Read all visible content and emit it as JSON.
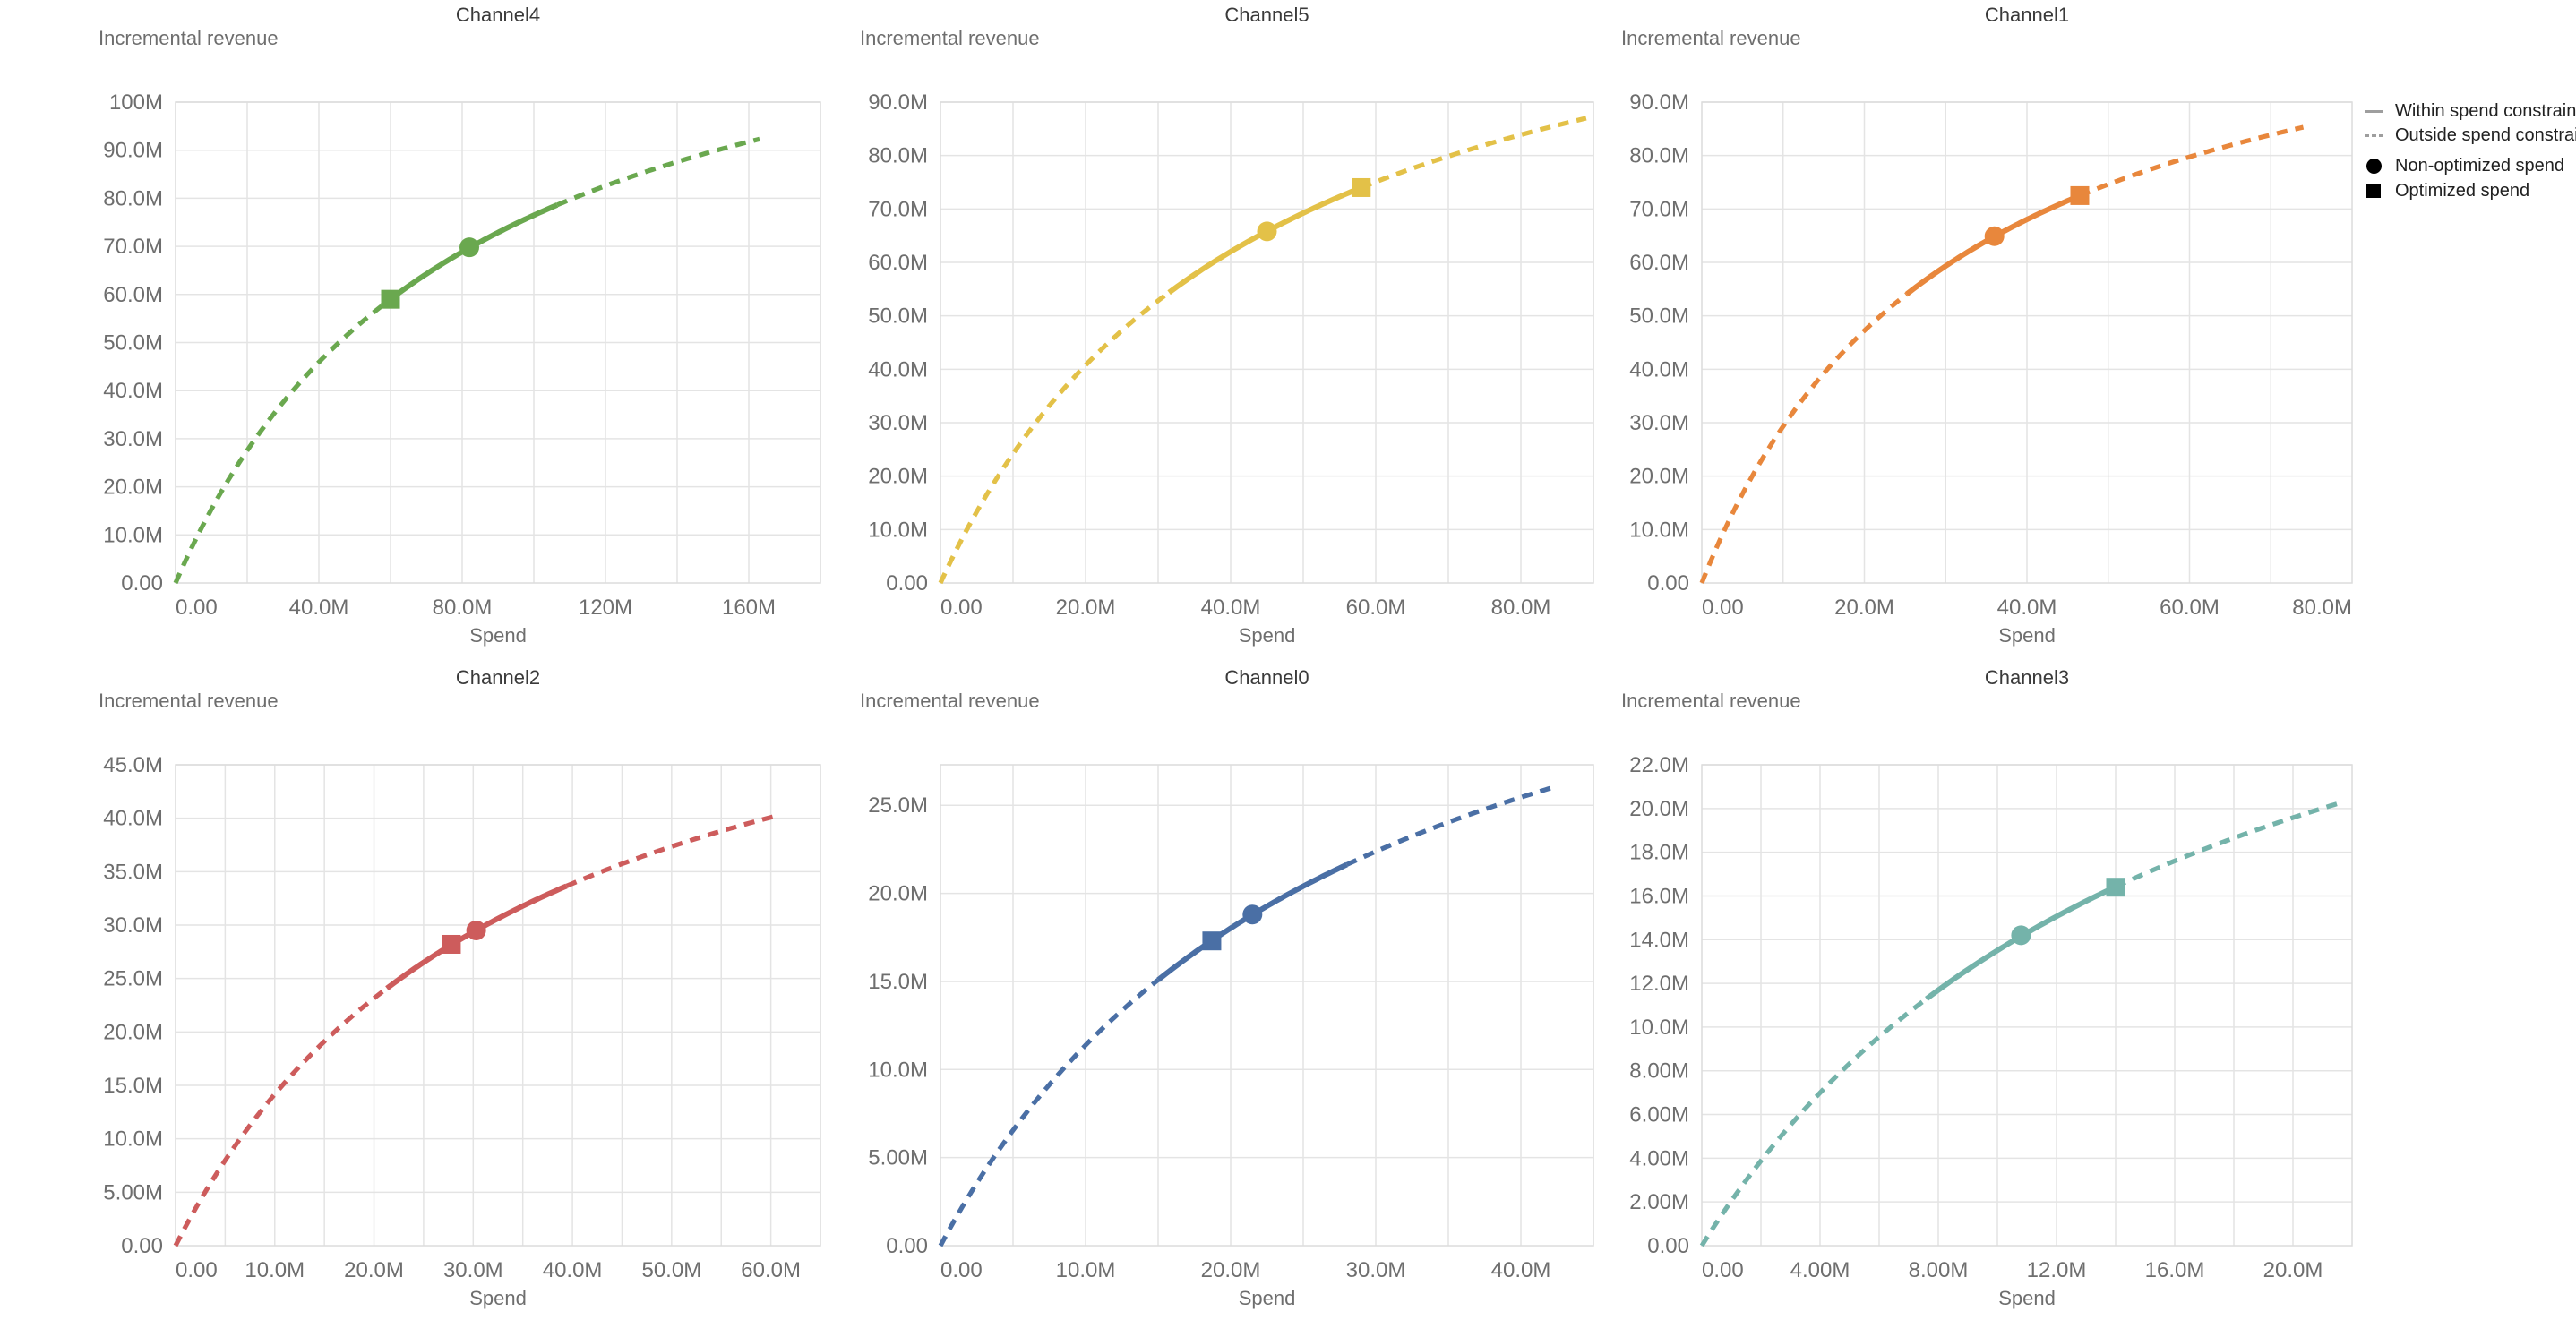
{
  "page": {
    "background": "#ffffff",
    "value_unit": "millions"
  },
  "axis_titles": {
    "x": "Spend",
    "y": "Incremental revenue"
  },
  "legend": {
    "text_color": "#212121",
    "line_swatch_color": "#9e9e9e",
    "marker_swatch_color": "#000000",
    "items": [
      {
        "swatch": "line-solid",
        "label": "Within spend constraint"
      },
      {
        "swatch": "line-dashed",
        "label": "Outside spend constraint"
      },
      {
        "swatch": "circle",
        "label": "Non-optimized spend"
      },
      {
        "swatch": "square",
        "label": "Optimized spend"
      }
    ]
  },
  "chart_data": [
    {
      "type": "line",
      "title": "Channel4",
      "color": "#6aa84f",
      "xlabel": "Spend",
      "ylabel": "Incremental revenue",
      "x_domain": [
        0,
        180
      ],
      "x_grid_step": 20,
      "y_domain": [
        0,
        100
      ],
      "x_ticks": [
        {
          "v": 0,
          "label": "0.00"
        },
        {
          "v": 40,
          "label": "40.0M"
        },
        {
          "v": 80,
          "label": "80.0M"
        },
        {
          "v": 120,
          "label": "120M"
        },
        {
          "v": 160,
          "label": "160M"
        }
      ],
      "y_ticks": [
        {
          "v": 0,
          "label": "0.00"
        },
        {
          "v": 10,
          "label": "10.0M"
        },
        {
          "v": 20,
          "label": "20.0M"
        },
        {
          "v": 30,
          "label": "30.0M"
        },
        {
          "v": 40,
          "label": "40.0M"
        },
        {
          "v": 50,
          "label": "50.0M"
        },
        {
          "v": 60,
          "label": "60.0M"
        },
        {
          "v": 70,
          "label": "70.0M"
        },
        {
          "v": 80,
          "label": "80.0M"
        },
        {
          "v": 90,
          "label": "90.0M"
        },
        {
          "v": 100,
          "label": "100M"
        }
      ],
      "last_label_flush": false,
      "curve": {
        "hill_ymax": 137.5,
        "hill_k": 79.8,
        "x_end": 163,
        "solid_range": [
          57.5,
          106.5
        ]
      },
      "points": {
        "non_optimized": {
          "x": 82,
          "y": 69.8
        },
        "optimized": {
          "x": 60,
          "y": 59.0
        }
      },
      "series": {
        "x": [
          0,
          20,
          40,
          60,
          80,
          100,
          120,
          140,
          160,
          163
        ],
        "y": [
          0,
          27.6,
          45.9,
          59.0,
          68.8,
          76.5,
          82.6,
          87.6,
          91.8,
          92.3
        ]
      }
    },
    {
      "type": "line",
      "title": "Channel5",
      "color": "#e3c148",
      "xlabel": "Spend",
      "ylabel": "Incremental revenue",
      "x_domain": [
        0,
        90
      ],
      "x_grid_step": 10,
      "y_domain": [
        0,
        90
      ],
      "x_ticks": [
        {
          "v": 0,
          "label": "0.00"
        },
        {
          "v": 20,
          "label": "20.0M"
        },
        {
          "v": 40,
          "label": "40.0M"
        },
        {
          "v": 60,
          "label": "60.0M"
        },
        {
          "v": 80,
          "label": "80.0M"
        }
      ],
      "y_ticks": [
        {
          "v": 0,
          "label": "0.00"
        },
        {
          "v": 10,
          "label": "10.0M"
        },
        {
          "v": 20,
          "label": "20.0M"
        },
        {
          "v": 30,
          "label": "30.0M"
        },
        {
          "v": 40,
          "label": "40.0M"
        },
        {
          "v": 50,
          "label": "50.0M"
        },
        {
          "v": 60,
          "label": "60.0M"
        },
        {
          "v": 70,
          "label": "70.0M"
        },
        {
          "v": 80,
          "label": "80.0M"
        },
        {
          "v": 90,
          "label": "90.0M"
        }
      ],
      "last_label_flush": false,
      "curve": {
        "hill_ymax": 129.6,
        "hill_k": 43.6,
        "x_end": 89,
        "solid_range": [
          31.5,
          58
        ]
      },
      "points": {
        "non_optimized": {
          "x": 45,
          "y": 65.8
        },
        "optimized": {
          "x": 58,
          "y": 74.0
        }
      },
      "series": {
        "x": [
          0,
          10,
          20,
          30,
          40,
          45,
          50,
          58,
          70,
          80,
          89
        ],
        "y": [
          0,
          24.2,
          40.8,
          52.8,
          62.0,
          65.8,
          69.2,
          74.0,
          79.9,
          83.9,
          87.0
        ]
      }
    },
    {
      "type": "line",
      "title": "Channel1",
      "color": "#e8873c",
      "xlabel": "Spend",
      "ylabel": "Incremental revenue",
      "x_domain": [
        0,
        80
      ],
      "x_grid_step": 10,
      "y_domain": [
        0,
        90
      ],
      "x_ticks": [
        {
          "v": 0,
          "label": "0.00"
        },
        {
          "v": 20,
          "label": "20.0M"
        },
        {
          "v": 40,
          "label": "40.0M"
        },
        {
          "v": 60,
          "label": "60.0M"
        },
        {
          "v": 80,
          "label": "80.0M"
        }
      ],
      "y_ticks": [
        {
          "v": 0,
          "label": "0.00"
        },
        {
          "v": 10,
          "label": "10.0M"
        },
        {
          "v": 20,
          "label": "20.0M"
        },
        {
          "v": 30,
          "label": "30.0M"
        },
        {
          "v": 40,
          "label": "40.0M"
        },
        {
          "v": 50,
          "label": "50.0M"
        },
        {
          "v": 60,
          "label": "60.0M"
        },
        {
          "v": 70,
          "label": "70.0M"
        },
        {
          "v": 80,
          "label": "80.0M"
        },
        {
          "v": 90,
          "label": "90.0M"
        }
      ],
      "last_label_flush": true,
      "curve": {
        "hill_ymax": 121.6,
        "hill_k": 31.5,
        "x_end": 74,
        "solid_range": [
          25.2,
          46.5
        ]
      },
      "points": {
        "non_optimized": {
          "x": 36,
          "y": 64.9
        },
        "optimized": {
          "x": 46.5,
          "y": 72.5
        }
      },
      "series": {
        "x": [
          0,
          10,
          20,
          30,
          36,
          40,
          46.5,
          55,
          65,
          74
        ],
        "y": [
          0,
          29.3,
          47.2,
          59.3,
          64.9,
          68.0,
          72.5,
          77.3,
          81.9,
          85.3
        ]
      }
    },
    {
      "type": "line",
      "title": "Channel2",
      "color": "#cd5c5c",
      "xlabel": "Spend",
      "ylabel": "Incremental revenue",
      "x_domain": [
        0,
        65
      ],
      "x_grid_step": 5,
      "y_domain": [
        0,
        45
      ],
      "x_ticks": [
        {
          "v": 0,
          "label": "0.00"
        },
        {
          "v": 10,
          "label": "10.0M"
        },
        {
          "v": 20,
          "label": "20.0M"
        },
        {
          "v": 30,
          "label": "30.0M"
        },
        {
          "v": 40,
          "label": "40.0M"
        },
        {
          "v": 50,
          "label": "50.0M"
        },
        {
          "v": 60,
          "label": "60.0M"
        }
      ],
      "y_ticks": [
        {
          "v": 0,
          "label": "0.00"
        },
        {
          "v": 5,
          "label": "5.00M"
        },
        {
          "v": 10,
          "label": "10.0M"
        },
        {
          "v": 15,
          "label": "15.0M"
        },
        {
          "v": 20,
          "label": "20.0M"
        },
        {
          "v": 25,
          "label": "25.0M"
        },
        {
          "v": 30,
          "label": "30.0M"
        },
        {
          "v": 35,
          "label": "35.0M"
        },
        {
          "v": 40,
          "label": "40.0M"
        },
        {
          "v": 45,
          "label": "45.0M"
        }
      ],
      "last_label_flush": false,
      "curve": {
        "hill_ymax": 63.2,
        "hill_k": 34.6,
        "x_end": 60.5,
        "solid_range": [
          21.3,
          39.4
        ]
      },
      "points": {
        "non_optimized": {
          "x": 30.3,
          "y": 29.5
        },
        "optimized": {
          "x": 27.8,
          "y": 28.2
        }
      },
      "series": {
        "x": [
          0,
          5,
          10,
          15,
          20,
          25,
          27.8,
          30.3,
          35,
          40,
          45,
          50,
          55,
          60.5
        ],
        "y": [
          0,
          8.0,
          14.2,
          19.1,
          23.2,
          26.5,
          28.2,
          29.5,
          31.8,
          33.9,
          35.7,
          37.4,
          38.8,
          40.2
        ]
      }
    },
    {
      "type": "line",
      "title": "Channel0",
      "color": "#4a6fa5",
      "xlabel": "Spend",
      "ylabel": "Incremental revenue",
      "x_domain": [
        0,
        45
      ],
      "x_grid_step": 5,
      "y_domain": [
        0,
        27.3
      ],
      "x_ticks": [
        {
          "v": 0,
          "label": "0.00"
        },
        {
          "v": 10,
          "label": "10.0M"
        },
        {
          "v": 20,
          "label": "20.0M"
        },
        {
          "v": 30,
          "label": "30.0M"
        },
        {
          "v": 40,
          "label": "40.0M"
        }
      ],
      "y_ticks": [
        {
          "v": 0,
          "label": "0.00"
        },
        {
          "v": 5,
          "label": "5.00M"
        },
        {
          "v": 10,
          "label": "10.0M"
        },
        {
          "v": 15,
          "label": "15.0M"
        },
        {
          "v": 20,
          "label": "20.0M"
        },
        {
          "v": 25,
          "label": "25.0M"
        }
      ],
      "last_label_flush": false,
      "curve": {
        "hill_ymax": 43.3,
        "hill_k": 28.05,
        "x_end": 42.5,
        "solid_range": [
          15,
          28
        ]
      },
      "points": {
        "non_optimized": {
          "x": 21.5,
          "y": 18.8
        },
        "optimized": {
          "x": 18.7,
          "y": 17.3
        }
      },
      "series": {
        "x": [
          0,
          5,
          10,
          15,
          18.7,
          21.5,
          25,
          30,
          35,
          40,
          42.5
        ],
        "y": [
          0,
          6.6,
          11.4,
          15.1,
          17.3,
          18.8,
          20.4,
          22.4,
          24.0,
          25.5,
          26.1
        ]
      }
    },
    {
      "type": "line",
      "title": "Channel3",
      "color": "#74b3aa",
      "xlabel": "Spend",
      "ylabel": "Incremental revenue",
      "x_domain": [
        0,
        22
      ],
      "x_grid_step": 2,
      "y_domain": [
        0,
        22
      ],
      "x_ticks": [
        {
          "v": 0,
          "label": "0.00"
        },
        {
          "v": 4,
          "label": "4.00M"
        },
        {
          "v": 8,
          "label": "8.00M"
        },
        {
          "v": 12,
          "label": "12.0M"
        },
        {
          "v": 16,
          "label": "16.0M"
        },
        {
          "v": 20,
          "label": "20.0M"
        }
      ],
      "y_ticks": [
        {
          "v": 0,
          "label": "0.00"
        },
        {
          "v": 2,
          "label": "2.00M"
        },
        {
          "v": 4,
          "label": "4.00M"
        },
        {
          "v": 6,
          "label": "6.00M"
        },
        {
          "v": 8,
          "label": "8.00M"
        },
        {
          "v": 10,
          "label": "10.0M"
        },
        {
          "v": 12,
          "label": "12.0M"
        },
        {
          "v": 14,
          "label": "14.0M"
        },
        {
          "v": 16,
          "label": "16.0M"
        },
        {
          "v": 18,
          "label": "18.0M"
        },
        {
          "v": 20,
          "label": "20.0M"
        },
        {
          "v": 22,
          "label": "22.0M"
        }
      ],
      "last_label_flush": false,
      "curve": {
        "hill_ymax": 35.6,
        "hill_k": 16.36,
        "x_end": 21.5,
        "solid_range": [
          7.6,
          14
        ]
      },
      "points": {
        "non_optimized": {
          "x": 10.8,
          "y": 14.2
        },
        "optimized": {
          "x": 14,
          "y": 16.4
        }
      },
      "series": {
        "x": [
          0,
          2,
          4,
          6,
          8,
          10.8,
          12,
          14,
          16,
          18,
          20,
          21.5
        ],
        "y": [
          0,
          3.9,
          7.0,
          9.6,
          11.7,
          14.2,
          15.1,
          16.4,
          17.6,
          18.6,
          19.6,
          20.2
        ]
      }
    }
  ],
  "style": {
    "grid_color": "#e4e4e4",
    "border_color": "#dcdcdc",
    "tick_label_color": "#6e6e6e",
    "axis_title_color": "#6e6e6e",
    "chart_title_color": "#3a3a3a"
  }
}
